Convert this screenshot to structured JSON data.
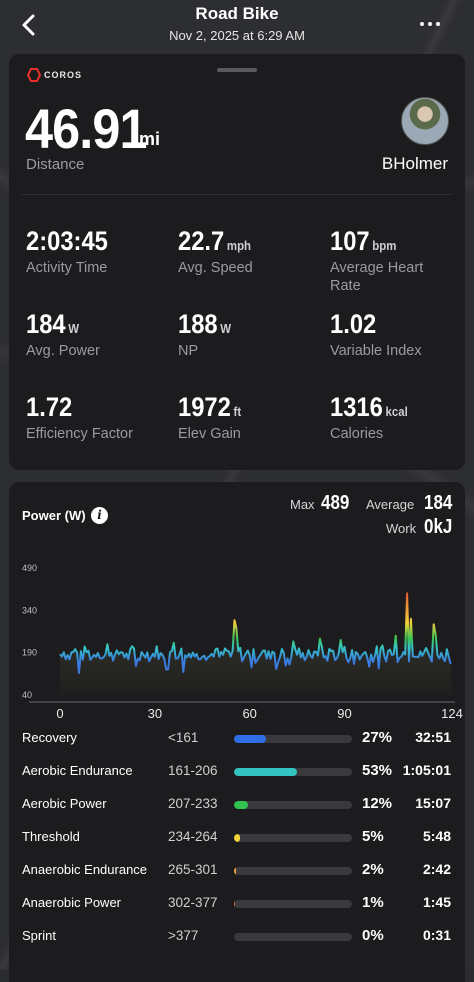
{
  "header": {
    "title": "Road Bike",
    "subtitle": "Nov 2, 2025 at 6:29 AM"
  },
  "brand": "COROS",
  "summary": {
    "distance_value": "46.91",
    "distance_unit": "mi",
    "distance_label": "Distance",
    "user_name": "BHolmer"
  },
  "stats": [
    {
      "value": "2:03:45",
      "unit": "",
      "label": "Activity Time"
    },
    {
      "value": "22.7",
      "unit": "mph",
      "label": "Avg. Speed"
    },
    {
      "value": "107",
      "unit": "bpm",
      "label": "Average Heart Rate"
    },
    {
      "value": "184",
      "unit": "W",
      "label": "Avg. Power"
    },
    {
      "value": "188",
      "unit": "W",
      "label": "NP"
    },
    {
      "value": "1.02",
      "unit": "",
      "label": "Variable Index"
    },
    {
      "value": "1.72",
      "unit": "",
      "label": "Efficiency Factor"
    },
    {
      "value": "1972",
      "unit": "ft",
      "label": "Elev Gain"
    },
    {
      "value": "1316",
      "unit": "kcal",
      "label": "Calories"
    }
  ],
  "power": {
    "title": "Power (W)",
    "max_label": "Max",
    "max_value": "489",
    "avg_label": "Average",
    "avg_value": "184",
    "work_label": "Work",
    "work_value": "0kJ"
  },
  "chart_data": {
    "type": "line",
    "y_ticks": [
      "490",
      "340",
      "190",
      "40"
    ],
    "x_ticks": [
      "0",
      "30",
      "60",
      "90",
      "124"
    ],
    "ylim": [
      40,
      490
    ],
    "xlim": [
      0,
      124
    ],
    "baseline_level": 185,
    "spikes": [
      [
        15,
        220
      ],
      [
        36,
        225
      ],
      [
        55,
        305
      ],
      [
        56,
        275
      ],
      [
        74,
        230
      ],
      [
        82,
        240
      ],
      [
        89,
        235
      ],
      [
        102,
        215
      ],
      [
        106,
        250
      ],
      [
        110,
        400
      ],
      [
        111,
        310
      ],
      [
        118,
        290
      ],
      [
        119,
        255
      ]
    ],
    "colors": {
      "low": "#3a7be0",
      "mid": "#35c7c4",
      "high": "#3cc352",
      "peak": "#f3d33c",
      "max": "#e53c2b"
    }
  },
  "zones": [
    {
      "name": "Recovery",
      "range": "<161",
      "pct": "27%",
      "fraction": 0.27,
      "time": "32:51",
      "color": "#2e6fe6"
    },
    {
      "name": "Aerobic Endurance",
      "range": "161-206",
      "pct": "53%",
      "fraction": 0.53,
      "time": "1:05:01",
      "color": "#33c4c2"
    },
    {
      "name": "Aerobic Power",
      "range": "207-233",
      "pct": "12%",
      "fraction": 0.12,
      "time": "15:07",
      "color": "#34c24f"
    },
    {
      "name": "Threshold",
      "range": "234-264",
      "pct": "5%",
      "fraction": 0.05,
      "time": "5:48",
      "color": "#f2d43b"
    },
    {
      "name": "Anaerobic Endurance",
      "range": "265-301",
      "pct": "2%",
      "fraction": 0.02,
      "time": "2:42",
      "color": "#f0a23a"
    },
    {
      "name": "Anaerobic Power",
      "range": "302-377",
      "pct": "1%",
      "fraction": 0.01,
      "time": "1:45",
      "color": "#e8703a"
    },
    {
      "name": "Sprint",
      "range": ">377",
      "pct": "0%",
      "fraction": 0.0,
      "time": "0:31",
      "color": "#e53c2b"
    }
  ]
}
